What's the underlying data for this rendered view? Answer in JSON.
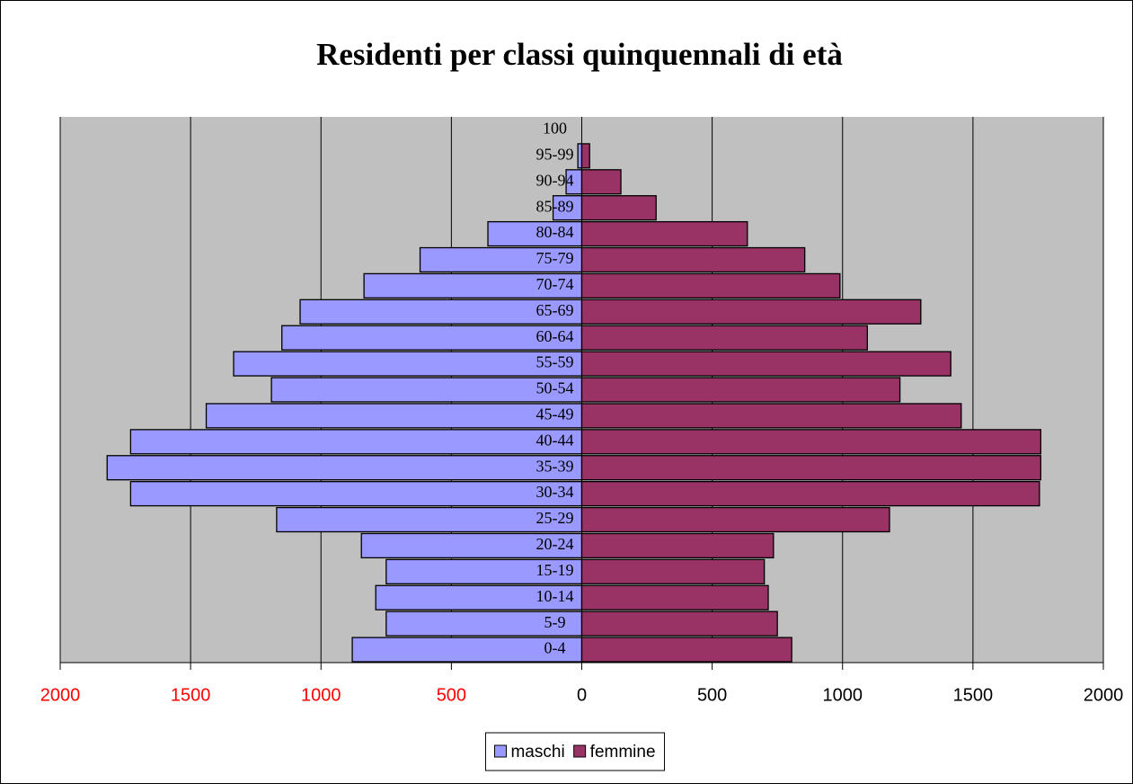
{
  "chart_data": {
    "type": "pyramid",
    "title": "Residenti per classi quinquennali di età",
    "categories": [
      "0-4",
      "5-9",
      "10-14",
      "15-19",
      "20-24",
      "25-29",
      "30-34",
      "35-39",
      "40-44",
      "45-49",
      "50-54",
      "55-59",
      "60-64",
      "65-69",
      "70-74",
      "75-79",
      "80-84",
      "85-89",
      "90-94",
      "95-99",
      "100"
    ],
    "series": [
      {
        "name": "maschi",
        "color": "#9999ff",
        "values": [
          -880,
          -750,
          -790,
          -750,
          -845,
          -1170,
          -1730,
          -1820,
          -1730,
          -1440,
          -1190,
          -1335,
          -1150,
          -1080,
          -835,
          -620,
          -360,
          -110,
          -60,
          -15,
          0
        ]
      },
      {
        "name": "femmine",
        "color": "#993366",
        "values": [
          805,
          750,
          715,
          700,
          735,
          1180,
          1755,
          1760,
          1760,
          1455,
          1220,
          1415,
          1095,
          1300,
          990,
          855,
          635,
          285,
          150,
          30,
          0
        ]
      }
    ],
    "xlim": [
      -2000,
      2000
    ],
    "xticks": [
      {
        "value": -2000,
        "label": "2000"
      },
      {
        "value": -1500,
        "label": "1500"
      },
      {
        "value": -1000,
        "label": "1000"
      },
      {
        "value": -500,
        "label": "500"
      },
      0,
      500,
      1000,
      1500,
      2000
    ],
    "grid": true,
    "legend": "bottom"
  }
}
